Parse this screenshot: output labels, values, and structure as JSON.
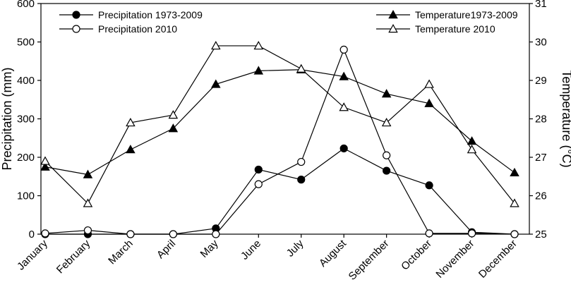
{
  "chart_data": {
    "type": "line",
    "categories": [
      "January",
      "February",
      "March",
      "April",
      "May",
      "June",
      "July",
      "August",
      "September",
      "October",
      "November",
      "December"
    ],
    "ylabel_left": "Precipitation (mm)",
    "ylabel_right": "Temperature (°C)",
    "ylim_left": [
      0,
      600
    ],
    "ylim_right": [
      25,
      31
    ],
    "yticks_left": [
      "0",
      "100",
      "200",
      "300",
      "400",
      "500",
      "600"
    ],
    "yticks_right": [
      "25",
      "26",
      "27",
      "28",
      "29",
      "30",
      "31"
    ],
    "grid": false,
    "series": [
      {
        "name": "Precipitation 1973-2009",
        "axis": "left",
        "marker": "filled-circle",
        "values": [
          0,
          0,
          0,
          0,
          15,
          168,
          142,
          223,
          165,
          127,
          5,
          0
        ]
      },
      {
        "name": "Precipitation 2010",
        "axis": "left",
        "marker": "open-circle",
        "values": [
          2,
          10,
          0,
          0,
          0,
          130,
          188,
          480,
          205,
          2,
          2,
          0
        ]
      },
      {
        "name": "Temperature1973-2009",
        "axis": "right",
        "marker": "filled-triangle",
        "values": [
          26.75,
          26.55,
          27.2,
          27.75,
          28.9,
          29.25,
          29.28,
          29.1,
          28.65,
          28.4,
          27.42,
          26.6
        ]
      },
      {
        "name": "Temperature 2010",
        "axis": "right",
        "marker": "open-triangle",
        "values": [
          26.9,
          25.8,
          27.9,
          28.1,
          29.9,
          29.9,
          29.3,
          28.3,
          27.9,
          28.9,
          27.2,
          25.8
        ]
      }
    ],
    "legend": {
      "left": [
        "Precipitation 1973-2009",
        "Precipitation 2010"
      ],
      "right": [
        "Temperature1973-2009",
        "Temperature 2010"
      ]
    }
  }
}
